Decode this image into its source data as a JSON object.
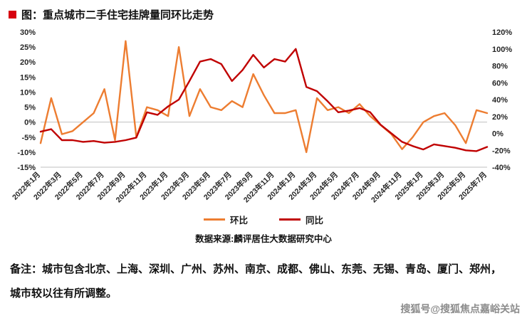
{
  "page": {
    "title": "图：重点城市二手住宅挂牌量同环比走势",
    "source": "数据来源:麟评居住大数据研究中心",
    "note_lines": [
      "备注：城市包含北京、上海、深圳、广州、苏州、南京、成都、佛山、东莞、无锡、青岛、厦门、郑州，",
      "城市较以往有所调整。"
    ],
    "watermark": "搜狐号@搜狐焦点嘉峪关站"
  },
  "colors": {
    "mom_line": "#ED7D31",
    "yoy_line": "#C00000",
    "title_bullet": "#D7000F",
    "axis_text": "#262626",
    "grid_line": "#bfbfbf",
    "watermark_text": "#8c8c8c"
  },
  "chart_data": {
    "type": "line",
    "title": "重点城市二手住宅挂牌量同环比走势",
    "grid": false,
    "legend_position": "bottom",
    "x": [
      "2022年1月",
      "2022年2月",
      "2022年3月",
      "2022年4月",
      "2022年5月",
      "2022年6月",
      "2022年7月",
      "2022年8月",
      "2022年9月",
      "2022年10月",
      "2022年11月",
      "2022年12月",
      "2023年1月",
      "2023年2月",
      "2023年3月",
      "2023年4月",
      "2023年5月",
      "2023年6月",
      "2023年7月",
      "2023年8月",
      "2023年9月",
      "2023年10月",
      "2023年11月",
      "2023年12月",
      "2024年1月",
      "2024年2月",
      "2024年3月",
      "2024年4月",
      "2024年5月",
      "2024年6月",
      "2024年7月",
      "2024年8月",
      "2024年9月",
      "2024年10月",
      "2024年11月",
      "2024年12月",
      "2025年1月",
      "2025年2月",
      "2025年3月",
      "2025年4月",
      "2025年5月",
      "2025年6月",
      "2025年7月"
    ],
    "x_tick_labels": [
      "2022年1月",
      "2022年3月",
      "2022年5月",
      "2022年7月",
      "2022年9月",
      "2022年11月",
      "2023年1月",
      "2023年3月",
      "2023年5月",
      "2023年7月",
      "2023年9月",
      "2023年11月",
      "2024年1月",
      "2024年3月",
      "2024年5月",
      "2024年7月",
      "2024年9月",
      "2024年11月",
      "2025年1月",
      "2025年3月",
      "2025年5月",
      "2025年7月"
    ],
    "x_tick_every": 2,
    "left_axis": {
      "min": -15,
      "max": 30,
      "step": 5,
      "unit": "%",
      "ticks": [
        "30%",
        "25%",
        "20%",
        "15%",
        "10%",
        "5%",
        "0%",
        "-5%",
        "-10%",
        "-15%"
      ]
    },
    "right_axis": {
      "min": -40,
      "max": 120,
      "step": 20,
      "unit": "%",
      "ticks": [
        "120%",
        "100%",
        "80%",
        "60%",
        "40%",
        "20%",
        "0%",
        "-20%",
        "-40%"
      ]
    },
    "series": [
      {
        "name": "环比",
        "key": "mom",
        "axis": "left",
        "color": "#ED7D31",
        "values": [
          -7,
          8,
          -4,
          -3,
          0,
          3,
          11,
          -6,
          27,
          -5,
          5,
          4,
          2,
          25,
          2,
          11,
          5,
          4,
          7,
          5,
          16,
          9,
          3,
          3,
          4,
          -10,
          8,
          4,
          5,
          3,
          6,
          2,
          -1,
          -4,
          -9,
          -5,
          0,
          2,
          3,
          -1,
          -7,
          4,
          3
        ]
      },
      {
        "name": "同比",
        "key": "yoy",
        "axis": "right",
        "color": "#C00000",
        "values": [
          2,
          5,
          -8,
          -8,
          -10,
          -9,
          -11,
          -10,
          -8,
          -5,
          25,
          22,
          32,
          40,
          62,
          85,
          88,
          82,
          62,
          75,
          93,
          78,
          88,
          85,
          100,
          55,
          50,
          38,
          25,
          27,
          30,
          25,
          10,
          0,
          -10,
          -15,
          -19,
          -13,
          -15,
          -17,
          -20,
          -21,
          -16
        ]
      }
    ]
  }
}
